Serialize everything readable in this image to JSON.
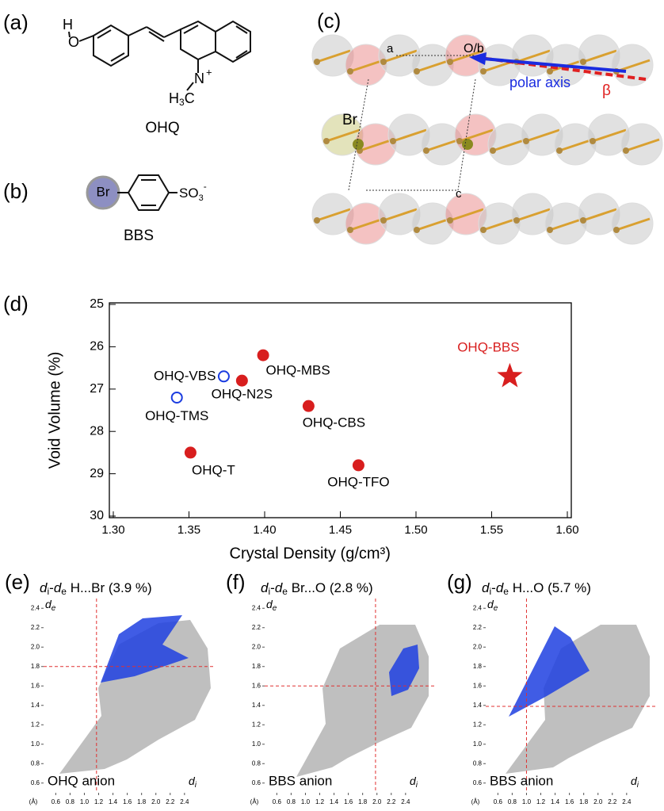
{
  "panels": {
    "a": {
      "tag": "(a)",
      "h": "H",
      "o": "O",
      "h3c": [
        "H",
        "3",
        "C"
      ],
      "n": "N",
      "plus": "+",
      "name": "OHQ"
    },
    "b": {
      "tag": "(b)",
      "br": "Br",
      "so3": [
        "SO",
        "3",
        "-"
      ],
      "name": "BBS"
    },
    "c": {
      "tag": "(c)",
      "a": "a",
      "ob": "O/b",
      "polar_axis": "polar axis",
      "beta": "β",
      "br": "Br",
      "c": "c"
    }
  },
  "chart_data": [
    {
      "type": "scatter",
      "panel_label": "(d)",
      "xlabel": "Crystal Density (g/cm³)",
      "ylabel": "Void Volume (%)",
      "xlim": [
        1.3,
        1.6
      ],
      "xticks": [
        {
          "value": 1.3,
          "label": "1.30"
        },
        {
          "value": 1.35,
          "label": "1.35"
        },
        {
          "value": 1.4,
          "label": "1.40"
        },
        {
          "value": 1.45,
          "label": "1.45"
        },
        {
          "value": 1.5,
          "label": "1.50"
        },
        {
          "value": 1.55,
          "label": "1.55"
        },
        {
          "value": 1.6,
          "label": "1.60"
        }
      ],
      "ylim": [
        25,
        30
      ],
      "yticks": [
        25,
        26,
        27,
        28,
        29,
        30
      ],
      "y_reversed": true,
      "series": [
        {
          "marker": "open-circle",
          "color": "#1a3ce0",
          "x": [
            1.373,
            1.342
          ],
          "y": [
            26.7,
            27.2
          ],
          "labels": [
            "OHQ-VBS",
            "OHQ-TMS"
          ]
        },
        {
          "marker": "circle",
          "color": "#d81e1e",
          "x": [
            1.385,
            1.399,
            1.429,
            1.351,
            1.462
          ],
          "y": [
            26.8,
            26.2,
            27.4,
            28.5,
            28.8
          ],
          "labels": [
            "OHQ-N2S",
            "OHQ-MBS",
            "OHQ-CBS",
            "OHQ-T",
            "OHQ-TFO"
          ]
        },
        {
          "marker": "star",
          "color": "#d81e1e",
          "label_color": "#d81e1e",
          "x": [
            1.562
          ],
          "y": [
            26.7
          ],
          "labels": [
            "OHQ-BBS"
          ]
        }
      ]
    },
    {
      "type": "fingerprint",
      "panel_label": "(e)",
      "title": [
        "d",
        "i",
        "-",
        "d",
        "e",
        " H...Br (3.9 %)"
      ],
      "xlabel": [
        "d",
        "i"
      ],
      "ylabel": [
        "d",
        "e"
      ],
      "xunit": "(Å)",
      "xlim": [
        0.43,
        2.59
      ],
      "ylim": [
        0.5,
        2.5
      ],
      "xticks": [
        0.6,
        0.8,
        {
          "value": 1,
          "label": "1.0"
        },
        1.2,
        1.4,
        1.6,
        1.8,
        {
          "value": 2,
          "label": "2.0"
        },
        2.2,
        2.4
      ],
      "yticks": [
        0.6,
        0.8,
        {
          "value": 1,
          "label": "1.0"
        },
        1.2,
        1.4,
        1.6,
        1.8,
        {
          "value": 2,
          "label": "2.0"
        },
        2.2,
        2.4
      ],
      "crosshair": {
        "x": 1.17,
        "y": 1.8
      },
      "crosshair_color": "#e03030",
      "annotation": "OHQ anion",
      "cloud_color": "#aaaaaa",
      "contact_color": "#1f3fe0"
    },
    {
      "type": "fingerprint",
      "panel_label": "(f)",
      "title": [
        "d",
        "i",
        "-",
        "d",
        "e",
        " Br...O (2.8 %)"
      ],
      "xlabel": [
        "d",
        "i"
      ],
      "ylabel": [
        "d",
        "e"
      ],
      "xunit": "(Å)",
      "xlim": [
        0.43,
        2.59
      ],
      "ylim": [
        0.5,
        2.5
      ],
      "xticks": [
        0.6,
        0.8,
        {
          "value": 1,
          "label": "1.0"
        },
        1.2,
        1.4,
        1.6,
        1.8,
        {
          "value": 2,
          "label": "2.0"
        },
        2.2,
        2.4
      ],
      "yticks": [
        0.6,
        0.8,
        {
          "value": 1,
          "label": "1.0"
        },
        1.2,
        1.4,
        1.6,
        1.8,
        {
          "value": 2,
          "label": "2.0"
        },
        2.2,
        2.4
      ],
      "crosshair": {
        "x": 1.98,
        "y": 1.6
      },
      "crosshair_color": "#e03030",
      "annotation": "BBS anion",
      "cloud_color": "#aaaaaa",
      "contact_color": "#1f3fe0"
    },
    {
      "type": "fingerprint",
      "panel_label": "(g)",
      "title": [
        "d",
        "i",
        "-",
        "d",
        "e",
        " H...O (5.7 %)"
      ],
      "xlabel": [
        "d",
        "i"
      ],
      "ylabel": [
        "d",
        "e"
      ],
      "xunit": "(Å)",
      "xlim": [
        0.43,
        2.59
      ],
      "ylim": [
        0.5,
        2.5
      ],
      "xticks": [
        0.6,
        0.8,
        {
          "value": 1,
          "label": "1.0"
        },
        1.2,
        1.4,
        1.6,
        1.8,
        {
          "value": 2,
          "label": "2.0"
        },
        2.2,
        2.4
      ],
      "yticks": [
        0.6,
        0.8,
        {
          "value": 1,
          "label": "1.0"
        },
        1.2,
        1.4,
        1.6,
        1.8,
        {
          "value": 2,
          "label": "2.0"
        },
        2.2,
        2.4
      ],
      "crosshair": {
        "x": 1.0,
        "y": 1.39
      },
      "crosshair_color": "#e03030",
      "annotation": "BBS anion",
      "cloud_color": "#aaaaaa",
      "contact_color": "#1f3fe0"
    }
  ]
}
